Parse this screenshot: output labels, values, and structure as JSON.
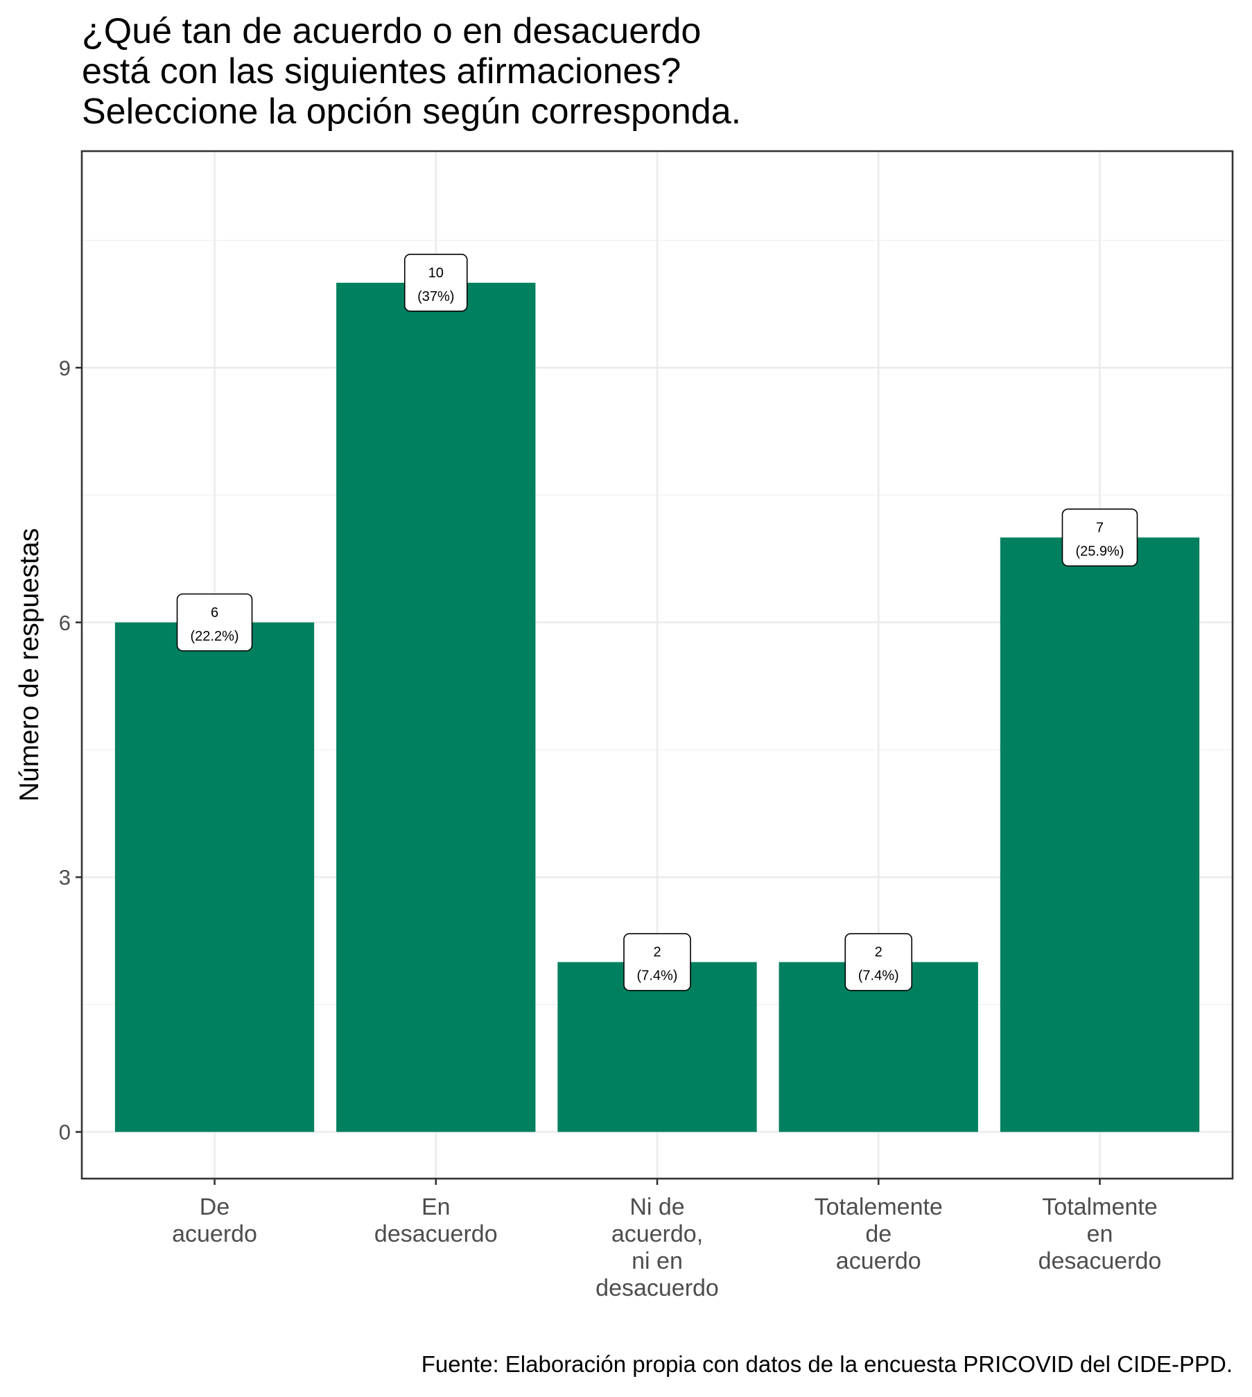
{
  "chart_data": {
    "type": "bar",
    "title_lines": [
      "¿Qué tan de acuerdo o en desacuerdo",
      "está con las siguientes afirmaciones?",
      "Seleccione la opción según corresponda."
    ],
    "xlabel": "",
    "ylabel": "Número de respuestas",
    "categories": [
      [
        "De",
        "acuerdo"
      ],
      [
        "En",
        "desacuerdo"
      ],
      [
        "Ni de",
        "acuerdo,",
        "ni en",
        "desacuerdo"
      ],
      [
        "Totalemente",
        "de",
        "acuerdo"
      ],
      [
        "Totalmente",
        "en",
        "desacuerdo"
      ]
    ],
    "values": [
      6,
      10,
      2,
      2,
      7
    ],
    "data_labels": [
      [
        "6",
        "(22.2%)"
      ],
      [
        "10",
        "(37%)"
      ],
      [
        "2",
        "(7.4%)"
      ],
      [
        "2",
        "(7.4%)"
      ],
      [
        "7",
        "(25.9%)"
      ]
    ],
    "yticks": [
      0,
      3,
      6,
      9
    ],
    "ylim": [
      -0.55,
      11.55
    ],
    "grid": true,
    "legend": "none",
    "bar_color": "#00805F",
    "caption": "Fuente: Elaboración propia con datos de la encuesta PRICOVID del CIDE-PPD."
  }
}
